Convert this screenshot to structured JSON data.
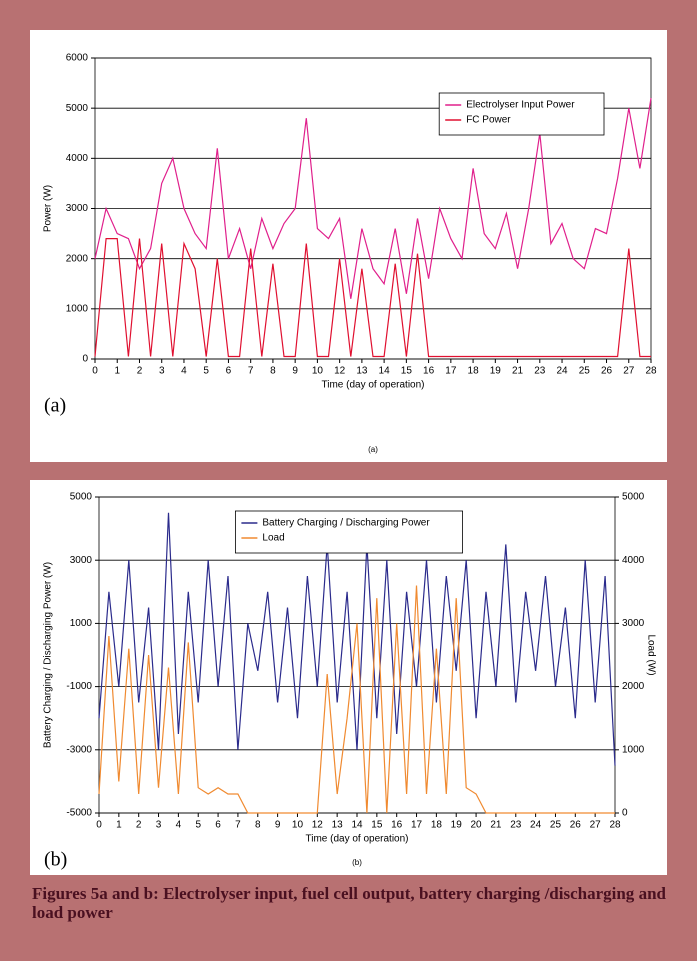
{
  "chart_data": [
    {
      "type": "line",
      "panel_label": "(a)",
      "sub_label": "(a)",
      "xlabel": "Time (day of operation)",
      "ylabel": "Power (W)",
      "xlim": [
        0,
        25
      ],
      "xticks": [
        {
          "value": 0,
          "label": "0"
        },
        {
          "value": 1,
          "label": "1"
        },
        {
          "value": 2,
          "label": "2"
        },
        {
          "value": 3,
          "label": "3"
        },
        {
          "value": 4,
          "label": "4"
        },
        {
          "value": 5,
          "label": "5"
        },
        {
          "value": 6,
          "label": "6"
        },
        {
          "value": 7,
          "label": "7"
        },
        {
          "value": 8,
          "label": "8"
        },
        {
          "value": 9,
          "label": "9"
        },
        {
          "value": 10,
          "label": "10"
        },
        {
          "value": 11,
          "label": "12"
        },
        {
          "value": 12,
          "label": "13"
        },
        {
          "value": 13,
          "label": "14"
        },
        {
          "value": 14,
          "label": "15"
        },
        {
          "value": 15,
          "label": "16"
        },
        {
          "value": 16,
          "label": "17"
        },
        {
          "value": 17,
          "label": "18"
        },
        {
          "value": 18,
          "label": "19"
        },
        {
          "value": 19,
          "label": "21"
        },
        {
          "value": 20,
          "label": "23"
        },
        {
          "value": 21,
          "label": "24"
        },
        {
          "value": 22,
          "label": "25"
        },
        {
          "value": 23,
          "label": "26"
        },
        {
          "value": 24,
          "label": "27"
        },
        {
          "value": 25,
          "label": "28"
        }
      ],
      "ylim": [
        0,
        6000
      ],
      "yticks": [
        0,
        1000,
        2000,
        3000,
        4000,
        5000,
        6000
      ],
      "grid": true,
      "legend": "upper right",
      "x": [
        0,
        0.5,
        1,
        1.5,
        2,
        2.5,
        3,
        3.5,
        4,
        4.5,
        5,
        5.5,
        6,
        6.5,
        7,
        7.5,
        8,
        8.5,
        9,
        9.5,
        10,
        10.5,
        11,
        11.5,
        12,
        12.5,
        13,
        13.5,
        14,
        14.5,
        15,
        15.5,
        16,
        16.5,
        17,
        17.5,
        18,
        18.5,
        19,
        19.5,
        20,
        20.5,
        21,
        21.5,
        22,
        22.5,
        23,
        23.5,
        24,
        24.5,
        25
      ],
      "series": [
        {
          "name": "Electrolyser Input Power",
          "color": "#e0208c",
          "values": [
            2000,
            3000,
            2500,
            2400,
            1800,
            2200,
            3500,
            4000,
            3000,
            2500,
            2200,
            4200,
            2000,
            2600,
            1800,
            2800,
            2200,
            2700,
            3000,
            4800,
            2600,
            2400,
            2800,
            1200,
            2600,
            1800,
            1500,
            2600,
            1300,
            2800,
            1600,
            3000,
            2400,
            2000,
            3800,
            2500,
            2200,
            2900,
            1800,
            3000,
            4500,
            2300,
            2700,
            2000,
            1800,
            2600,
            2500,
            3600,
            5000,
            3800,
            5200
          ]
        },
        {
          "name": "FC Power",
          "color": "#e01030",
          "values": [
            50,
            2400,
            2400,
            50,
            2400,
            50,
            2300,
            50,
            2300,
            1800,
            50,
            2000,
            50,
            50,
            2200,
            50,
            1900,
            50,
            50,
            2300,
            50,
            50,
            2000,
            50,
            1800,
            50,
            50,
            1900,
            50,
            2100,
            50,
            50,
            50,
            50,
            50,
            50,
            50,
            50,
            50,
            50,
            50,
            50,
            50,
            50,
            50,
            50,
            50,
            50,
            2200,
            50,
            50
          ]
        }
      ]
    },
    {
      "type": "line",
      "panel_label": "(b)",
      "sub_label": "(b)",
      "xlabel": "Time (day of operation)",
      "ylabel": "Battery Charging / Discharging Power (W)",
      "y2label": "Load (W)",
      "xlim": [
        0,
        26
      ],
      "xticks": [
        {
          "value": 0,
          "label": "0"
        },
        {
          "value": 1,
          "label": "1"
        },
        {
          "value": 2,
          "label": "2"
        },
        {
          "value": 3,
          "label": "3"
        },
        {
          "value": 4,
          "label": "4"
        },
        {
          "value": 5,
          "label": "5"
        },
        {
          "value": 6,
          "label": "6"
        },
        {
          "value": 7,
          "label": "7"
        },
        {
          "value": 8,
          "label": "8"
        },
        {
          "value": 9,
          "label": "9"
        },
        {
          "value": 10,
          "label": "10"
        },
        {
          "value": 11,
          "label": "12"
        },
        {
          "value": 12,
          "label": "13"
        },
        {
          "value": 13,
          "label": "14"
        },
        {
          "value": 14,
          "label": "15"
        },
        {
          "value": 15,
          "label": "16"
        },
        {
          "value": 16,
          "label": "17"
        },
        {
          "value": 17,
          "label": "18"
        },
        {
          "value": 18,
          "label": "19"
        },
        {
          "value": 19,
          "label": "20"
        },
        {
          "value": 20,
          "label": "21"
        },
        {
          "value": 21,
          "label": "23"
        },
        {
          "value": 22,
          "label": "24"
        },
        {
          "value": 23,
          "label": "25"
        },
        {
          "value": 24,
          "label": "26"
        },
        {
          "value": 25,
          "label": "27"
        },
        {
          "value": 26,
          "label": "28"
        }
      ],
      "ylim": [
        -5000,
        5000
      ],
      "yticks": [
        -5000,
        -3000,
        -1000,
        1000,
        3000,
        5000
      ],
      "y2lim": [
        0,
        5000
      ],
      "y2ticks": [
        0,
        1000,
        2000,
        3000,
        4000,
        5000
      ],
      "grid": true,
      "legend": "upper center",
      "x": [
        0,
        0.5,
        1,
        1.5,
        2,
        2.5,
        3,
        3.5,
        4,
        4.5,
        5,
        5.5,
        6,
        6.5,
        7,
        7.5,
        8,
        8.5,
        9,
        9.5,
        10,
        10.5,
        11,
        11.5,
        12,
        12.5,
        13,
        13.5,
        14,
        14.5,
        15,
        15.5,
        16,
        16.5,
        17,
        17.5,
        18,
        18.5,
        19,
        19.5,
        20,
        20.5,
        21,
        21.5,
        22,
        22.5,
        23,
        23.5,
        24,
        24.5,
        25,
        25.5,
        26
      ],
      "series": [
        {
          "name": "Battery Charging / Discharging Power",
          "color": "#2b2b8c",
          "values": [
            -2000,
            2000,
            -1000,
            3000,
            -1500,
            1500,
            -3000,
            4500,
            -2500,
            2000,
            -1500,
            3000,
            -1000,
            2500,
            -3000,
            1000,
            -500,
            2000,
            -1500,
            1500,
            -2000,
            2500,
            -1000,
            3500,
            -1500,
            2000,
            -3000,
            3500,
            -2000,
            3000,
            -2500,
            2000,
            -1000,
            3000,
            -1500,
            2500,
            -500,
            3000,
            -2000,
            2000,
            -1000,
            3500,
            -1500,
            2000,
            -500,
            2500,
            -1000,
            1500,
            -2000,
            3000,
            -1500,
            2500,
            -3500
          ]
        },
        {
          "name": "Load",
          "color": "#f08a30",
          "axis": "y2",
          "values": [
            300,
            2800,
            500,
            2600,
            300,
            2500,
            400,
            2300,
            300,
            2700,
            400,
            300,
            400,
            300,
            300,
            0,
            0,
            0,
            0,
            0,
            0,
            0,
            0,
            2200,
            300,
            1500,
            3000,
            0,
            3400,
            0,
            3000,
            300,
            3600,
            300,
            2600,
            300,
            3400,
            400,
            300,
            0,
            0,
            0,
            0,
            0,
            0,
            0,
            0,
            0,
            0,
            0,
            0,
            0,
            0
          ]
        }
      ]
    }
  ],
  "caption": "Figures 5a and b: Electrolyser input, fuel cell output, battery charging /discharging and load power"
}
